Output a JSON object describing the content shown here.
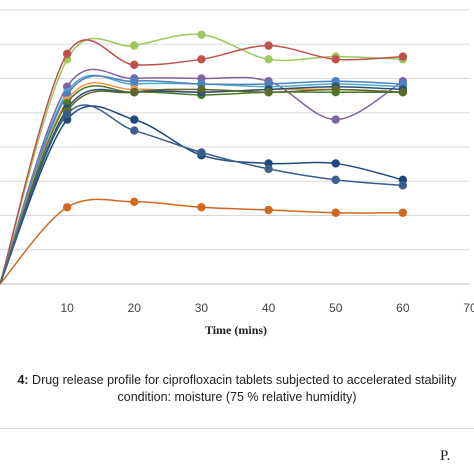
{
  "chart_data": {
    "type": "line",
    "xlabel": "Time (mins)",
    "x_ticks": [
      "10",
      "20",
      "30",
      "40",
      "50",
      "60",
      "70"
    ],
    "xlim": [
      0,
      70
    ],
    "ylim": [
      0,
      100
    ],
    "grid": "horizontal",
    "legend": "none",
    "series": [
      {
        "color": "#9dc85b",
        "x": [
          0,
          10,
          20,
          30,
          40,
          50,
          60
        ],
        "y": [
          0,
          82,
          87,
          91,
          82,
          83,
          82
        ]
      },
      {
        "color": "#c0504d",
        "x": [
          0,
          10,
          20,
          30,
          40,
          50,
          60
        ],
        "y": [
          0,
          84,
          80,
          82,
          87,
          82,
          83
        ]
      },
      {
        "color": "#8064a2",
        "x": [
          0,
          10,
          20,
          30,
          40,
          50,
          60
        ],
        "y": [
          0,
          72,
          75,
          75,
          74,
          60,
          74
        ]
      },
      {
        "color": "#4bacc6",
        "x": [
          0,
          10,
          20,
          30,
          40,
          50,
          60
        ],
        "y": [
          0,
          70,
          73,
          73,
          72,
          73,
          72
        ]
      },
      {
        "color": "#4f81bd",
        "x": [
          0,
          10,
          20,
          30,
          40,
          50,
          60
        ],
        "y": [
          0,
          69,
          74,
          73,
          73,
          74,
          73
        ]
      },
      {
        "color": "#f79646",
        "x": [
          0,
          10,
          20,
          30,
          40,
          50,
          60
        ],
        "y": [
          0,
          67,
          71,
          70,
          71,
          71,
          70
        ]
      },
      {
        "color": "#4a7a2c",
        "x": [
          0,
          10,
          20,
          30,
          40,
          50,
          60
        ],
        "y": [
          0,
          66,
          70,
          69,
          70,
          70,
          70
        ]
      },
      {
        "color": "#2c4d75",
        "x": [
          0,
          10,
          20,
          30,
          40,
          50,
          60
        ],
        "y": [
          0,
          64,
          70,
          70,
          71,
          72,
          71
        ]
      },
      {
        "color": "#5b6a2c",
        "x": [
          0,
          10,
          20,
          30,
          40,
          50,
          60
        ],
        "y": [
          0,
          63,
          70,
          71,
          70,
          71,
          70
        ]
      },
      {
        "color": "#1f497d",
        "x": [
          0,
          10,
          20,
          30,
          40,
          50,
          60
        ],
        "y": [
          0,
          60,
          60,
          47,
          44,
          44,
          38
        ]
      },
      {
        "color": "#3b5f8a",
        "x": [
          0,
          10,
          20,
          30,
          40,
          50,
          60
        ],
        "y": [
          0,
          62,
          56,
          48,
          42,
          38,
          36
        ]
      },
      {
        "color": "#d2691e",
        "x": [
          0,
          10,
          20,
          30,
          40,
          50,
          60
        ],
        "y": [
          0,
          28,
          30,
          28,
          27,
          26,
          26
        ]
      }
    ]
  },
  "caption": {
    "prefix": "4:",
    "line1": " Drug release profile for ciprofloxacin tablets subjected to accelerated stability",
    "line2": "condition: moisture (75 % relative humidity)"
  },
  "page_marker": "P."
}
